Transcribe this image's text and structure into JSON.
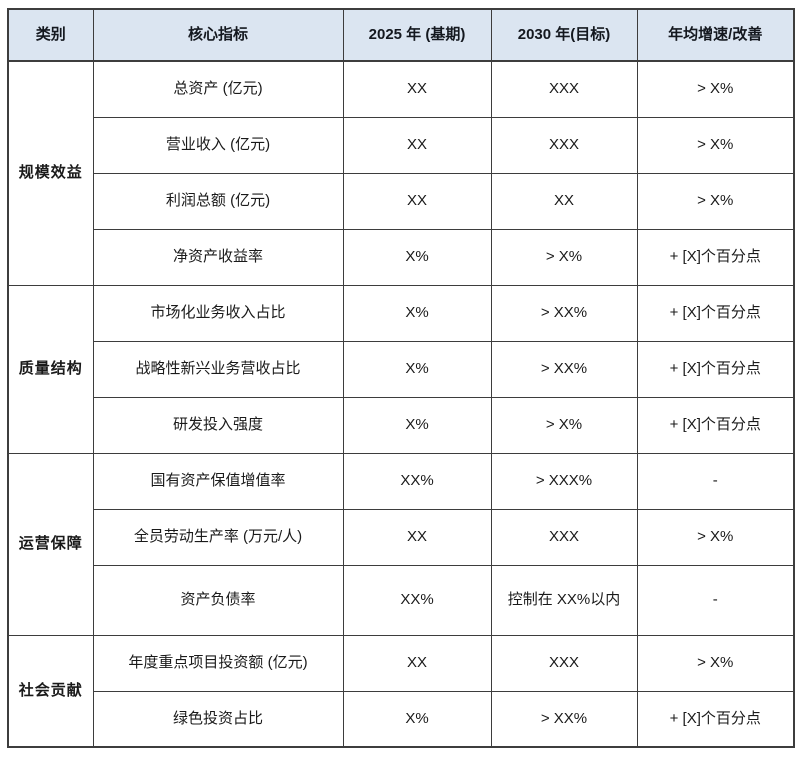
{
  "table": {
    "columns": [
      "类别",
      "核心指标",
      "2025 年 (基期)",
      "2030 年(目标)",
      "年均增速/改善"
    ],
    "groups": [
      {
        "category": "规模效益",
        "rows": [
          {
            "indicator": "总资产 (亿元)",
            "base": "XX",
            "target": "XXX",
            "growth": "> X%"
          },
          {
            "indicator": "营业收入 (亿元)",
            "base": "XX",
            "target": "XXX",
            "growth": "> X%"
          },
          {
            "indicator": "利润总额 (亿元)",
            "base": "XX",
            "target": "XX",
            "growth": "> X%"
          },
          {
            "indicator": "净资产收益率",
            "base": "X%",
            "target": "> X%",
            "growth": "+ [X]个百分点"
          }
        ]
      },
      {
        "category": "质量结构",
        "rows": [
          {
            "indicator": "市场化业务收入占比",
            "base": "X%",
            "target": "> XX%",
            "growth": "+ [X]个百分点"
          },
          {
            "indicator": "战略性新兴业务营收占比",
            "base": "X%",
            "target": "> XX%",
            "growth": "+ [X]个百分点"
          },
          {
            "indicator": "研发投入强度",
            "base": "X%",
            "target": "> X%",
            "growth": "+ [X]个百分点"
          }
        ]
      },
      {
        "category": "运营保障",
        "rows": [
          {
            "indicator": "国有资产保值增值率",
            "base": "XX%",
            "target": "> XXX%",
            "growth": "-"
          },
          {
            "indicator": "全员劳动生产率 (万元/人)",
            "base": "XX",
            "target": "XXX",
            "growth": "> X%"
          },
          {
            "indicator": "资产负债率",
            "base": "XX%",
            "target": "控制在 XX%以内",
            "growth": "-"
          }
        ]
      },
      {
        "category": "社会贡献",
        "rows": [
          {
            "indicator": "年度重点项目投资额 (亿元)",
            "base": "XX",
            "target": "XXX",
            "growth": "> X%"
          },
          {
            "indicator": "绿色投资占比",
            "base": "X%",
            "target": "> XX%",
            "growth": "+ [X]个百分点"
          }
        ]
      }
    ]
  },
  "colors": {
    "header_bg": "#dbe5f1",
    "border": "#3d3d3d",
    "text": "#1a1a1a"
  }
}
